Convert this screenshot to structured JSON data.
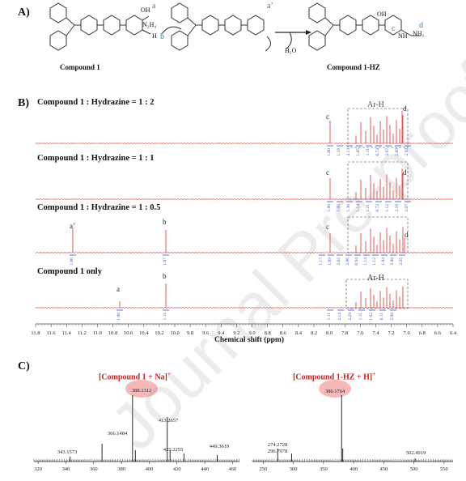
{
  "panel_a": {
    "label": "A)",
    "reagent": "N₂H₄",
    "byproduct": "H₂O",
    "compound1_label": "Compound 1",
    "compound_hz_label": "Compound 1-HZ",
    "proton_labels": {
      "a": "a",
      "b": "b",
      "a_prime": "a’",
      "c": "c",
      "d": "d"
    },
    "atom_labels": {
      "oh": "OH",
      "h": "H",
      "nh2": "NH₂",
      "nh": "NH"
    }
  },
  "panel_b": {
    "label": "B)",
    "spectra": [
      {
        "title": "Compound 1 : Hydrazine = 1 : 2",
        "peaks": [
          "c",
          "d"
        ],
        "region": "Ar-H",
        "integrals": [
          "1.00",
          "1.16",
          "4.13",
          "1.05",
          "1.11",
          "0.74",
          "2.07",
          "2.09",
          "2.93"
        ]
      },
      {
        "title": "Compound 1 : Hydrazine = 1 : 1",
        "peaks": [
          "c",
          "d"
        ],
        "integrals": [
          "1.00",
          "1.05",
          "1.30",
          "1.14",
          "1.21",
          "0.72",
          "1.12",
          "2.16",
          "2.07"
        ]
      },
      {
        "title": "Compound 1 : Hydrazine = 1 : 0.5",
        "peaks": [
          "a’",
          "b",
          "c",
          "d"
        ],
        "integrals_left": [
          "1.00",
          "1.07"
        ],
        "integrals": [
          "1.17",
          "1.09",
          "2.02",
          "2.06",
          "0.94",
          "1.14",
          "1.12",
          "1.94",
          "3.88",
          "2.35"
        ]
      },
      {
        "title": "Compound 1 only",
        "peaks": [
          "a",
          "b"
        ],
        "region": "Ar-H",
        "integrals_left": [
          "1.00",
          "1.11"
        ],
        "integrals": [
          "1.11",
          "2.14",
          "4.29",
          "1.11",
          "1.02",
          "6.11",
          "2.08"
        ]
      }
    ],
    "axis": {
      "ticks": [
        "11.8",
        "11.6",
        "11.4",
        "11.2",
        "11.0",
        "10.8",
        "10.6",
        "10.4",
        "10.2",
        "10.0",
        "9.8",
        "9.6",
        "9.4",
        "9.2",
        "9.0",
        "8.8",
        "8.6",
        "8.4",
        "8.2",
        "8.0",
        "7.8",
        "7.6",
        "7.4",
        "7.2",
        "7.0",
        "6.8",
        "6.6",
        "6.4"
      ],
      "label": "Chemical shift (ppm)"
    }
  },
  "panel_c": {
    "label": "C)",
    "spectra": [
      {
        "title": "[Compound 1 + Na]",
        "superscript": "+",
        "peak_labels": [
          "388.1312",
          "413.2657",
          "366.1484",
          "343.1573",
          "425.2255",
          "449.3619"
        ],
        "ticks": [
          "320",
          "340",
          "360",
          "380",
          "400",
          "420",
          "440",
          "460"
        ]
      },
      {
        "title": "[Compound 1-HZ + H]",
        "superscript": "+",
        "peak_labels": [
          "380.1764",
          "274.2728",
          "296.7978",
          "502.4919"
        ],
        "ticks": [
          "250",
          "300",
          "350",
          "400",
          "450",
          "500",
          "550"
        ]
      }
    ]
  },
  "watermark": "Journal Pre-proof"
}
